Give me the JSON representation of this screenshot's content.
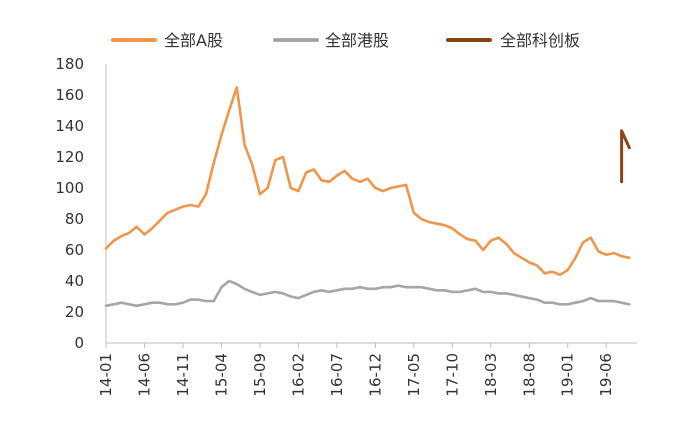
{
  "chart_data": {
    "type": "line",
    "title": "",
    "xlabel": "",
    "ylabel": "",
    "ylim": [
      0,
      180
    ],
    "yticks": [
      0,
      20,
      40,
      60,
      80,
      100,
      120,
      140,
      160,
      180
    ],
    "xlim": [
      "14-01",
      "19-10"
    ],
    "xticks": [
      "14-01",
      "14-06",
      "14-11",
      "15-04",
      "15-09",
      "16-02",
      "16-07",
      "16-12",
      "17-05",
      "17-10",
      "18-03",
      "18-08",
      "19-01",
      "19-06"
    ],
    "grid": false,
    "legend_position": "top",
    "series": [
      {
        "name": "全部A股",
        "color": "#F0964A",
        "points": [
          [
            "14-01",
            61
          ],
          [
            "14-02",
            66
          ],
          [
            "14-03",
            69
          ],
          [
            "14-04",
            71
          ],
          [
            "14-05",
            75
          ],
          [
            "14-06",
            70
          ],
          [
            "14-07",
            74
          ],
          [
            "14-08",
            79
          ],
          [
            "14-09",
            84
          ],
          [
            "14-10",
            86
          ],
          [
            "14-11",
            88
          ],
          [
            "14-12",
            89
          ],
          [
            "15-01",
            88
          ],
          [
            "15-02",
            96
          ],
          [
            "15-03",
            116
          ],
          [
            "15-04",
            134
          ],
          [
            "15-05",
            150
          ],
          [
            "15-06",
            165
          ],
          [
            "15-07",
            128
          ],
          [
            "15-08",
            115
          ],
          [
            "15-09",
            96
          ],
          [
            "15-10",
            100
          ],
          [
            "15-11",
            118
          ],
          [
            "15-12",
            120
          ],
          [
            "16-01",
            100
          ],
          [
            "16-02",
            98
          ],
          [
            "16-03",
            110
          ],
          [
            "16-04",
            112
          ],
          [
            "16-05",
            105
          ],
          [
            "16-06",
            104
          ],
          [
            "16-07",
            108
          ],
          [
            "16-08",
            111
          ],
          [
            "16-09",
            106
          ],
          [
            "16-10",
            104
          ],
          [
            "16-11",
            106
          ],
          [
            "16-12",
            100
          ],
          [
            "17-01",
            98
          ],
          [
            "17-02",
            100
          ],
          [
            "17-03",
            101
          ],
          [
            "17-04",
            102
          ],
          [
            "17-05",
            84
          ],
          [
            "17-06",
            80
          ],
          [
            "17-07",
            78
          ],
          [
            "17-08",
            77
          ],
          [
            "17-09",
            76
          ],
          [
            "17-10",
            74
          ],
          [
            "17-11",
            70
          ],
          [
            "17-12",
            67
          ],
          [
            "18-01",
            66
          ],
          [
            "18-02",
            60
          ],
          [
            "18-03",
            66
          ],
          [
            "18-04",
            68
          ],
          [
            "18-05",
            64
          ],
          [
            "18-06",
            58
          ],
          [
            "18-07",
            55
          ],
          [
            "18-08",
            52
          ],
          [
            "18-09",
            50
          ],
          [
            "18-10",
            45
          ],
          [
            "18-11",
            46
          ],
          [
            "18-12",
            44
          ],
          [
            "19-01",
            47
          ],
          [
            "19-02",
            55
          ],
          [
            "19-03",
            65
          ],
          [
            "19-04",
            68
          ],
          [
            "19-05",
            59
          ],
          [
            "19-06",
            57
          ],
          [
            "19-07",
            58
          ],
          [
            "19-08",
            56
          ],
          [
            "19-09",
            55
          ]
        ]
      },
      {
        "name": "全部港股",
        "color": "#A6A6A6",
        "points": [
          [
            "14-01",
            24
          ],
          [
            "14-02",
            25
          ],
          [
            "14-03",
            26
          ],
          [
            "14-04",
            25
          ],
          [
            "14-05",
            24
          ],
          [
            "14-06",
            25
          ],
          [
            "14-07",
            26
          ],
          [
            "14-08",
            26
          ],
          [
            "14-09",
            25
          ],
          [
            "14-10",
            25
          ],
          [
            "14-11",
            26
          ],
          [
            "14-12",
            28
          ],
          [
            "15-01",
            28
          ],
          [
            "15-02",
            27
          ],
          [
            "15-03",
            27
          ],
          [
            "15-04",
            36
          ],
          [
            "15-05",
            40
          ],
          [
            "15-06",
            38
          ],
          [
            "15-07",
            35
          ],
          [
            "15-08",
            33
          ],
          [
            "15-09",
            31
          ],
          [
            "15-10",
            32
          ],
          [
            "15-11",
            33
          ],
          [
            "15-12",
            32
          ],
          [
            "16-01",
            30
          ],
          [
            "16-02",
            29
          ],
          [
            "16-03",
            31
          ],
          [
            "16-04",
            33
          ],
          [
            "16-05",
            34
          ],
          [
            "16-06",
            33
          ],
          [
            "16-07",
            34
          ],
          [
            "16-08",
            35
          ],
          [
            "16-09",
            35
          ],
          [
            "16-10",
            36
          ],
          [
            "16-11",
            35
          ],
          [
            "16-12",
            35
          ],
          [
            "17-01",
            36
          ],
          [
            "17-02",
            36
          ],
          [
            "17-03",
            37
          ],
          [
            "17-04",
            36
          ],
          [
            "17-05",
            36
          ],
          [
            "17-06",
            36
          ],
          [
            "17-07",
            35
          ],
          [
            "17-08",
            34
          ],
          [
            "17-09",
            34
          ],
          [
            "17-10",
            33
          ],
          [
            "17-11",
            33
          ],
          [
            "17-12",
            34
          ],
          [
            "18-01",
            35
          ],
          [
            "18-02",
            33
          ],
          [
            "18-03",
            33
          ],
          [
            "18-04",
            32
          ],
          [
            "18-05",
            32
          ],
          [
            "18-06",
            31
          ],
          [
            "18-07",
            30
          ],
          [
            "18-08",
            29
          ],
          [
            "18-09",
            28
          ],
          [
            "18-10",
            26
          ],
          [
            "18-11",
            26
          ],
          [
            "18-12",
            25
          ],
          [
            "19-01",
            25
          ],
          [
            "19-02",
            26
          ],
          [
            "19-03",
            27
          ],
          [
            "19-04",
            29
          ],
          [
            "19-05",
            27
          ],
          [
            "19-06",
            27
          ],
          [
            "19-07",
            27
          ],
          [
            "19-08",
            26
          ],
          [
            "19-09",
            25
          ]
        ]
      },
      {
        "name": "全部科创板",
        "color": "#8B4513",
        "points": [
          [
            "19-08",
            104
          ],
          [
            "19-08",
            137
          ],
          [
            "19-09",
            126
          ]
        ]
      }
    ]
  }
}
